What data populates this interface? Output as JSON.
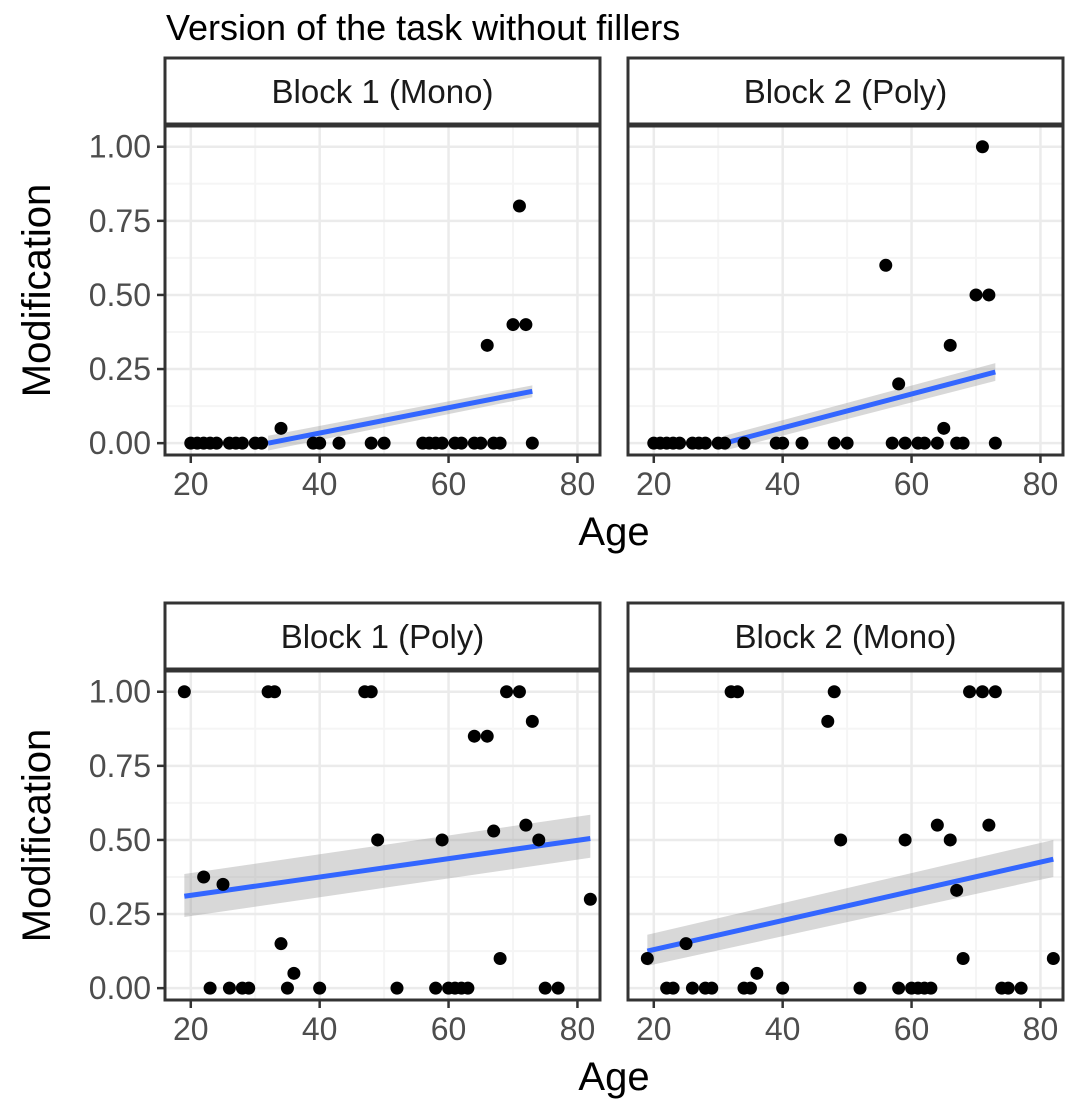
{
  "title": "Version of the task without fillers",
  "chart_data": [
    {
      "type": "scatter",
      "xlabel": "Age",
      "ylabel": "Modification",
      "xlim": [
        16,
        83.5
      ],
      "ylim": [
        -0.04,
        1.07
      ],
      "x_ticks": [
        "20",
        "40",
        "60",
        "80"
      ],
      "y_ticks": [
        "0.00",
        "0.25",
        "0.50",
        "0.75",
        "1.00"
      ],
      "grid": true,
      "facets": [
        {
          "label": "Block 1 (Mono)",
          "points": [
            [
              20,
              0
            ],
            [
              21,
              0
            ],
            [
              22,
              0
            ],
            [
              23,
              0
            ],
            [
              24,
              0
            ],
            [
              26,
              0
            ],
            [
              27,
              0
            ],
            [
              28,
              0
            ],
            [
              30,
              0
            ],
            [
              31,
              0
            ],
            [
              34,
              0.05
            ],
            [
              39,
              0
            ],
            [
              40,
              0
            ],
            [
              43,
              0
            ],
            [
              48,
              0
            ],
            [
              50,
              0
            ],
            [
              56,
              0
            ],
            [
              57,
              0
            ],
            [
              58,
              0
            ],
            [
              59,
              0
            ],
            [
              61,
              0
            ],
            [
              62,
              0
            ],
            [
              64,
              0
            ],
            [
              65,
              0
            ],
            [
              66,
              0.33
            ],
            [
              67,
              0
            ],
            [
              68,
              0
            ],
            [
              70,
              0.4
            ],
            [
              71,
              0.8
            ],
            [
              72,
              0.4
            ],
            [
              73,
              0
            ]
          ],
          "fit": {
            "x": [
              32,
              73
            ],
            "y": [
              0.0,
              0.175
            ],
            "lower": [
              -0.025,
              0.155
            ],
            "upper": [
              0.025,
              0.195
            ]
          }
        },
        {
          "label": "Block 2 (Poly)",
          "points": [
            [
              20,
              0
            ],
            [
              21,
              0
            ],
            [
              22,
              0
            ],
            [
              23,
              0
            ],
            [
              24,
              0
            ],
            [
              26,
              0
            ],
            [
              27,
              0
            ],
            [
              28,
              0
            ],
            [
              30,
              0
            ],
            [
              31,
              0
            ],
            [
              34,
              0
            ],
            [
              39,
              0
            ],
            [
              40,
              0
            ],
            [
              43,
              0
            ],
            [
              48,
              0
            ],
            [
              50,
              0
            ],
            [
              56,
              0.6
            ],
            [
              57,
              0
            ],
            [
              58,
              0.2
            ],
            [
              59,
              0
            ],
            [
              61,
              0
            ],
            [
              62,
              0
            ],
            [
              64,
              0
            ],
            [
              65,
              0.05
            ],
            [
              66,
              0.33
            ],
            [
              67,
              0
            ],
            [
              68,
              0
            ],
            [
              70,
              0.5
            ],
            [
              71,
              1.0
            ],
            [
              72,
              0.5
            ],
            [
              73,
              0
            ]
          ],
          "fit": {
            "x": [
              31,
              73
            ],
            "y": [
              0.0,
              0.24
            ],
            "lower": [
              -0.025,
              0.21
            ],
            "upper": [
              0.025,
              0.27
            ]
          }
        }
      ]
    },
    {
      "type": "scatter",
      "xlabel": "Age",
      "ylabel": "Modification",
      "xlim": [
        16,
        83.5
      ],
      "ylim": [
        -0.04,
        1.07
      ],
      "x_ticks": [
        "20",
        "40",
        "60",
        "80"
      ],
      "y_ticks": [
        "0.00",
        "0.25",
        "0.50",
        "0.75",
        "1.00"
      ],
      "grid": true,
      "facets": [
        {
          "label": "Block 1 (Poly)",
          "points": [
            [
              19,
              1.0
            ],
            [
              22,
              0.375
            ],
            [
              23,
              0
            ],
            [
              25,
              0.35
            ],
            [
              26,
              0
            ],
            [
              28,
              0
            ],
            [
              29,
              0
            ],
            [
              32,
              1.0
            ],
            [
              33,
              1.0
            ],
            [
              34,
              0.15
            ],
            [
              35,
              0
            ],
            [
              36,
              0.05
            ],
            [
              40,
              0
            ],
            [
              47,
              1.0
            ],
            [
              48,
              1.0
            ],
            [
              49,
              0.5
            ],
            [
              52,
              0
            ],
            [
              58,
              0
            ],
            [
              59,
              0.5
            ],
            [
              60,
              0
            ],
            [
              61,
              0
            ],
            [
              62,
              0
            ],
            [
              63,
              0
            ],
            [
              64,
              0.85
            ],
            [
              66,
              0.85
            ],
            [
              67,
              0.53
            ],
            [
              68,
              0.1
            ],
            [
              69,
              1.0
            ],
            [
              71,
              1.0
            ],
            [
              72,
              0.55
            ],
            [
              73,
              0.9
            ],
            [
              74,
              0.5
            ],
            [
              75,
              0
            ],
            [
              77,
              0
            ],
            [
              82,
              0.3
            ]
          ],
          "fit": {
            "x": [
              19,
              82
            ],
            "y": [
              0.31,
              0.505
            ],
            "lower": [
              0.24,
              0.44
            ],
            "upper": [
              0.385,
              0.585
            ]
          }
        },
        {
          "label": "Block 2 (Mono)",
          "points": [
            [
              19,
              0.1
            ],
            [
              22,
              0
            ],
            [
              23,
              0
            ],
            [
              25,
              0.15
            ],
            [
              26,
              0
            ],
            [
              28,
              0
            ],
            [
              29,
              0
            ],
            [
              32,
              1.0
            ],
            [
              33,
              1.0
            ],
            [
              34,
              0
            ],
            [
              35,
              0
            ],
            [
              36,
              0.05
            ],
            [
              40,
              0
            ],
            [
              47,
              0.9
            ],
            [
              48,
              1.0
            ],
            [
              49,
              0.5
            ],
            [
              52,
              0
            ],
            [
              58,
              0
            ],
            [
              59,
              0.5
            ],
            [
              60,
              0
            ],
            [
              61,
              0
            ],
            [
              62,
              0
            ],
            [
              63,
              0
            ],
            [
              64,
              0.55
            ],
            [
              66,
              0.5
            ],
            [
              67,
              0.33
            ],
            [
              68,
              0.1
            ],
            [
              69,
              1.0
            ],
            [
              71,
              1.0
            ],
            [
              72,
              0.55
            ],
            [
              73,
              1.0
            ],
            [
              74,
              0
            ],
            [
              75,
              0
            ],
            [
              77,
              0
            ],
            [
              82,
              0.1
            ]
          ],
          "fit": {
            "x": [
              19,
              82
            ],
            "y": [
              0.125,
              0.435
            ],
            "lower": [
              0.075,
              0.375
            ],
            "upper": [
              0.18,
              0.5
            ]
          }
        }
      ]
    }
  ],
  "colors": {
    "point": "#000000",
    "fit_line": "#3366FF",
    "ribbon": "#999999",
    "strip_fill": "#ffffff",
    "panel_border": "#333333",
    "grid_major": "#ebebeb",
    "grid_minor": "#f5f5f5"
  }
}
